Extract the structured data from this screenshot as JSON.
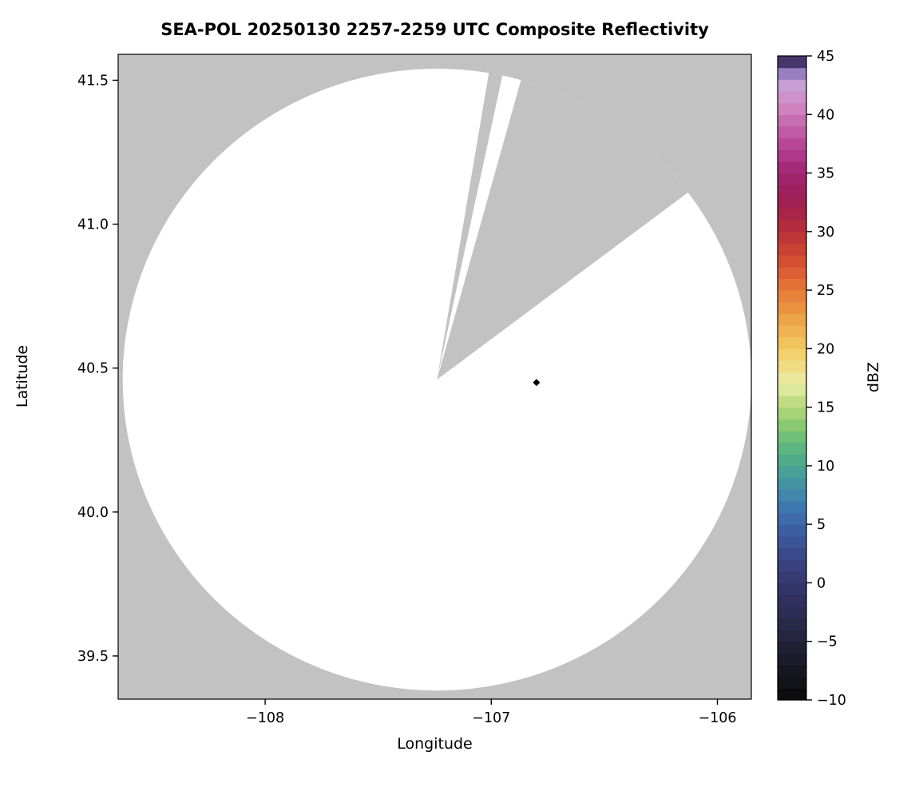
{
  "chart_data": {
    "type": "radar_composite_reflectivity_map",
    "title": "SEA-POL 20250130 2257-2259 UTC Composite Reflectivity",
    "xlabel": "Longitude",
    "ylabel": "Latitude",
    "xlim": [
      -108.65,
      -105.85
    ],
    "ylim": [
      39.35,
      41.59
    ],
    "xticks": [
      -108,
      -107,
      -106
    ],
    "xtick_labels": [
      "−108",
      "−107",
      "−106"
    ],
    "yticks": [
      39.5,
      40.0,
      40.5,
      41.0,
      41.5
    ],
    "ytick_labels": [
      "39.5",
      "40.0",
      "40.5",
      "41.0",
      "41.5"
    ],
    "grid": false,
    "legend": "none",
    "no_data_color": "#c2c2c2",
    "coverage_fill": "#ffffff",
    "radar": {
      "center_lon": -107.24,
      "center_lat": 40.46,
      "range_radius_lon_deg": 1.39,
      "range_radius_lat_deg": 1.08,
      "blocked_sector_azimuth_deg": [
        9.5,
        53
      ],
      "clear_sliver_azimuth_deg": [
        12,
        15.5
      ]
    },
    "marker": {
      "lon": -106.8,
      "lat": 40.45,
      "symbol": "diamond",
      "color": "#000000"
    },
    "colorbar": {
      "label": "dBZ",
      "min": -10,
      "max": 45,
      "step": 1,
      "tick_values": [
        45,
        40,
        35,
        30,
        25,
        20,
        15,
        10,
        5,
        0,
        -5,
        -10
      ],
      "tick_labels": [
        "45",
        "40",
        "35",
        "30",
        "25",
        "20",
        "15",
        "10",
        "5",
        "0",
        "−5",
        "−10"
      ],
      "stops": [
        [
          -10,
          "#0a0a0c"
        ],
        [
          -7,
          "#191926"
        ],
        [
          -4,
          "#272744"
        ],
        [
          -1,
          "#323163"
        ],
        [
          2,
          "#3a4585"
        ],
        [
          5,
          "#3d64a8"
        ],
        [
          7,
          "#3f7fb0"
        ],
        [
          9,
          "#459a9c"
        ],
        [
          11,
          "#52b184"
        ],
        [
          13,
          "#7cc472"
        ],
        [
          15,
          "#b4d877"
        ],
        [
          17,
          "#e9eda8"
        ],
        [
          19,
          "#f2d876"
        ],
        [
          21,
          "#f0bc55"
        ],
        [
          23,
          "#ec9a43"
        ],
        [
          25,
          "#e57a38"
        ],
        [
          27,
          "#d95532"
        ],
        [
          29,
          "#c43a33"
        ],
        [
          31,
          "#ad2742"
        ],
        [
          33,
          "#9e1f58"
        ],
        [
          35,
          "#a12472"
        ],
        [
          37,
          "#b23f90"
        ],
        [
          39,
          "#c463ab"
        ],
        [
          41,
          "#d18cc4"
        ],
        [
          42.5,
          "#c79fd6"
        ],
        [
          43.5,
          "#9a7ec2"
        ],
        [
          44.2,
          "#5f4a8b"
        ],
        [
          45,
          "#201532"
        ]
      ]
    }
  }
}
